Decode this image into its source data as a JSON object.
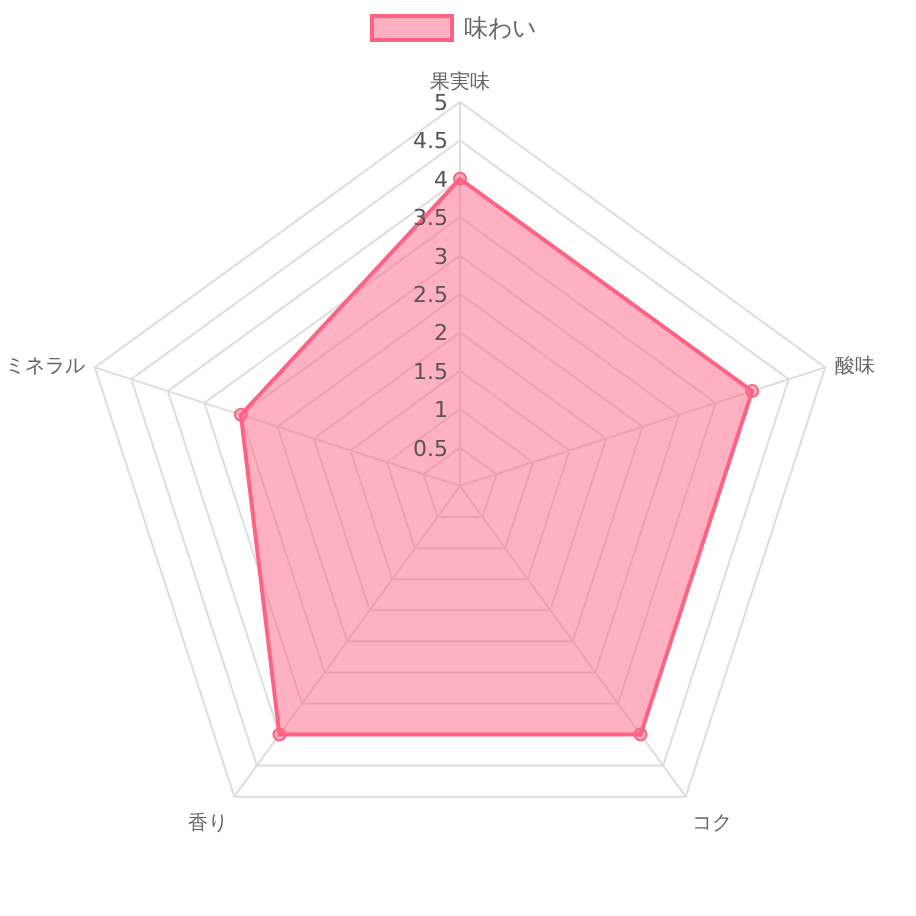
{
  "chart_data": {
    "type": "radar",
    "categories": [
      "果実味",
      "酸味",
      "コク",
      "香り",
      "ミネラル"
    ],
    "series": [
      {
        "name": "味わい",
        "color": "#ff6384",
        "values": [
          4,
          4,
          4,
          4,
          3
        ]
      }
    ],
    "ylim": [
      0,
      5
    ],
    "yticks": [
      0.5,
      1,
      1.5,
      2,
      2.5,
      3,
      3.5,
      4,
      4.5,
      5
    ],
    "legend": "top",
    "marker": "circle"
  }
}
